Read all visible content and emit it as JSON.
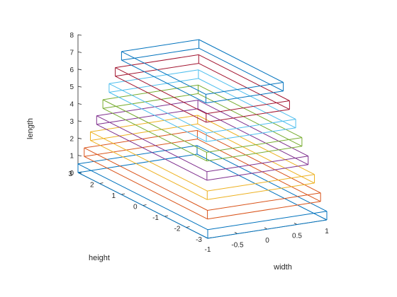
{
  "chart_data": {
    "type": "3d-wireframe-boxes",
    "title": "",
    "xlabel": "width",
    "ylabel": "height",
    "zlabel": "length",
    "xlim": [
      -1,
      1
    ],
    "ylim": [
      -3,
      3
    ],
    "zlim": [
      0,
      8
    ],
    "x_ticks": [
      "-1",
      "-0.5",
      "0",
      "0.5",
      "1"
    ],
    "y_ticks": [
      "3",
      "2",
      "1",
      "0",
      "-1",
      "-2",
      "-3"
    ],
    "z_ticks": [
      "0",
      "1",
      "2",
      "3",
      "4",
      "5",
      "6",
      "7",
      "8"
    ],
    "grid": false,
    "boxes": [
      {
        "x_half": 1.0,
        "y_half": 3.0,
        "z_bottom": 0.0,
        "z_top": 0.5,
        "color": "#0072BD"
      },
      {
        "x_half": 0.95,
        "y_half": 2.85,
        "z_bottom": 1.0,
        "z_top": 1.5,
        "color": "#D95319"
      },
      {
        "x_half": 0.9,
        "y_half": 2.7,
        "z_bottom": 2.0,
        "z_top": 2.5,
        "color": "#EDB120"
      },
      {
        "x_half": 0.85,
        "y_half": 2.55,
        "z_bottom": 3.0,
        "z_top": 3.5,
        "color": "#7E2F8E"
      },
      {
        "x_half": 0.8,
        "y_half": 2.4,
        "z_bottom": 4.0,
        "z_top": 4.5,
        "color": "#77AC30"
      },
      {
        "x_half": 0.75,
        "y_half": 2.25,
        "z_bottom": 5.0,
        "z_top": 5.5,
        "color": "#4DBEEE"
      },
      {
        "x_half": 0.7,
        "y_half": 2.1,
        "z_bottom": 6.0,
        "z_top": 6.5,
        "color": "#A2142F"
      },
      {
        "x_half": 0.65,
        "y_half": 1.95,
        "z_bottom": 7.0,
        "z_top": 7.5,
        "color": "#0072BD"
      }
    ]
  }
}
